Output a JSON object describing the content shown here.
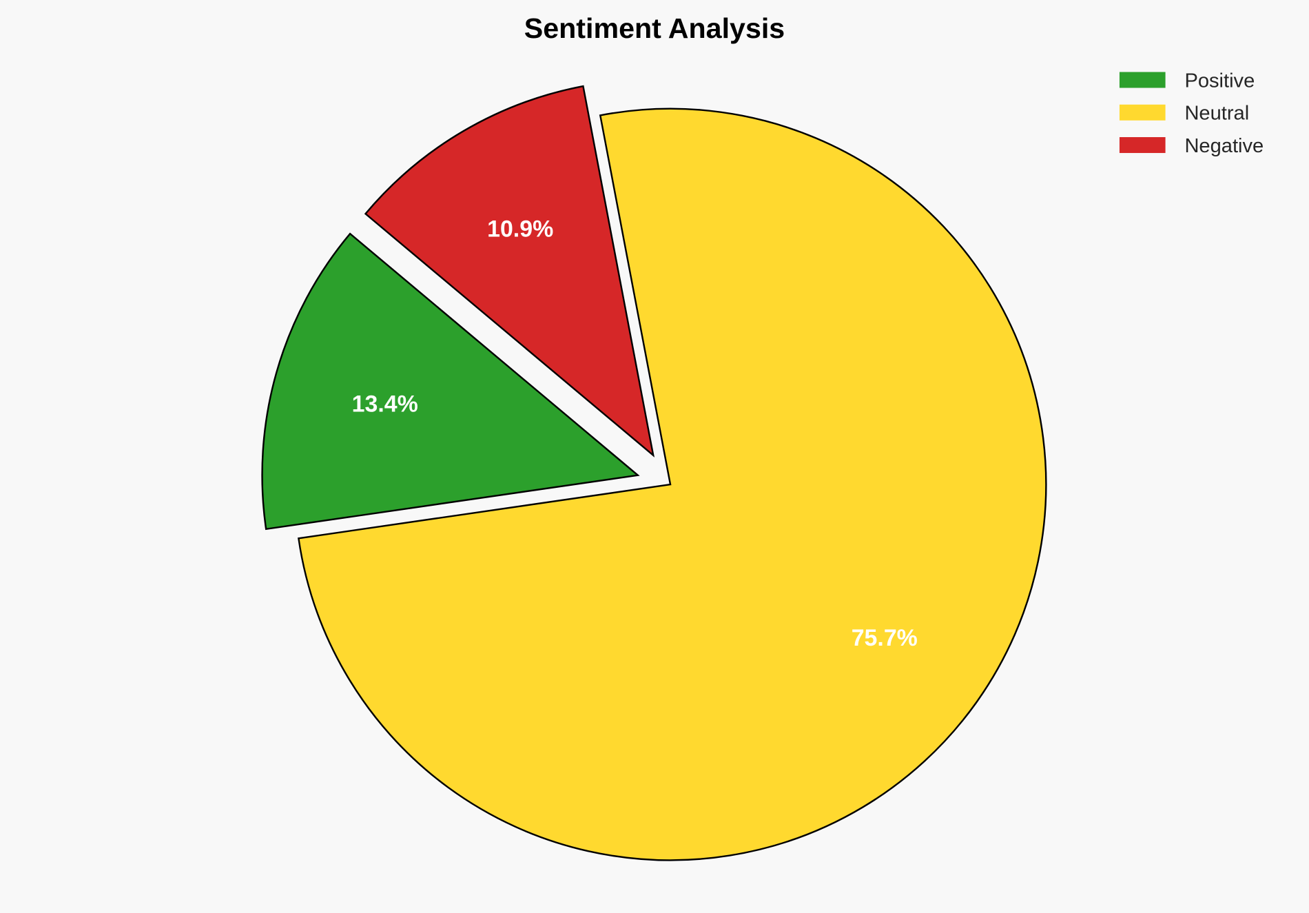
{
  "chart_data": {
    "type": "pie",
    "title": "Sentiment Analysis",
    "categories": [
      "Positive",
      "Neutral",
      "Negative"
    ],
    "values": [
      13.4,
      75.7,
      10.9
    ],
    "labels": [
      "13.4%",
      "75.7%",
      "10.9%"
    ],
    "colors": [
      "#2ca02c",
      "#ffd92f",
      "#d62728"
    ],
    "explode": [
      0.09,
      0,
      0.09
    ],
    "start_angle_deg": 140,
    "direction": "counterclockwise",
    "legend_position": "top-right",
    "background": "#f8f8f8"
  }
}
